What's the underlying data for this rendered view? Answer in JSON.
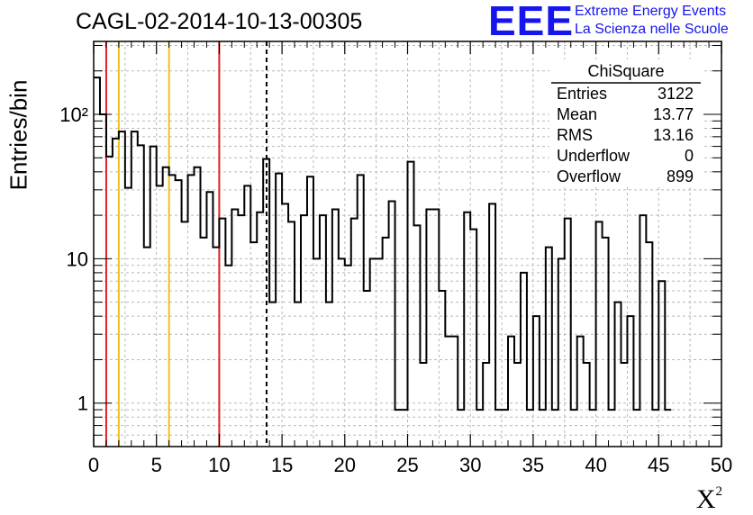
{
  "title": "CAGL-02-2014-10-13-00305",
  "logo": {
    "mark": "EEE",
    "line1": "Extreme Energy Events",
    "line2": "La Scienza nelle Scuole"
  },
  "stats": {
    "name": "ChiSquare",
    "rows": [
      {
        "label": "Entries",
        "value": "3122"
      },
      {
        "label": "Mean",
        "value": "13.77"
      },
      {
        "label": "RMS",
        "value": "13.16"
      },
      {
        "label": "Underflow",
        "value": "0"
      },
      {
        "label": "Overflow",
        "value": "899"
      }
    ]
  },
  "chart_data": {
    "type": "bar",
    "title": "CAGL-02-2014-10-13-00305",
    "xlabel": "χ²",
    "ylabel": "Entries/bin",
    "xlim": [
      0,
      50
    ],
    "ylim": [
      0.5,
      320
    ],
    "yscale": "log",
    "grid": true,
    "bin_width": 0.5,
    "x_ticks": [
      "0",
      "5",
      "10",
      "15",
      "20",
      "25",
      "30",
      "35",
      "40",
      "45",
      "50"
    ],
    "y_ticks": [
      {
        "value": 1,
        "label": "1"
      },
      {
        "value": 10,
        "label": "10"
      },
      {
        "value": 100,
        "label": "10²"
      }
    ],
    "values": [
      180,
      100,
      51,
      68,
      76,
      31,
      76,
      61,
      12,
      60,
      32,
      43,
      38,
      35,
      18,
      38,
      43,
      14,
      29,
      12,
      19,
      9,
      22,
      20,
      32,
      13,
      21,
      49,
      5,
      39,
      24,
      18,
      5,
      20,
      37,
      10,
      20,
      5,
      22,
      10,
      9,
      19,
      38,
      6,
      10,
      10,
      14,
      25,
      0.9,
      0.9,
      47,
      17,
      1.9,
      22,
      22,
      6,
      2.9,
      2.9,
      0.9,
      21,
      16,
      0.9,
      1.9,
      24,
      0.9,
      0.9,
      2.9,
      1.9,
      8,
      0.9,
      4,
      0.9,
      12,
      0.9,
      10,
      19,
      0.9,
      2.9,
      1.9,
      0.9,
      18,
      14,
      0.9,
      5,
      1.9,
      4,
      0.9,
      20,
      13,
      0.9,
      7,
      0.9
    ],
    "markers": [
      {
        "x": 1,
        "color": "#e02020",
        "style": "solid"
      },
      {
        "x": 2,
        "color": "#f0c020",
        "style": "solid"
      },
      {
        "x": 6,
        "color": "#f0c020",
        "style": "solid"
      },
      {
        "x": 10,
        "color": "#e02020",
        "style": "solid"
      },
      {
        "x": 13.77,
        "color": "#000000",
        "style": "dashed"
      }
    ]
  }
}
